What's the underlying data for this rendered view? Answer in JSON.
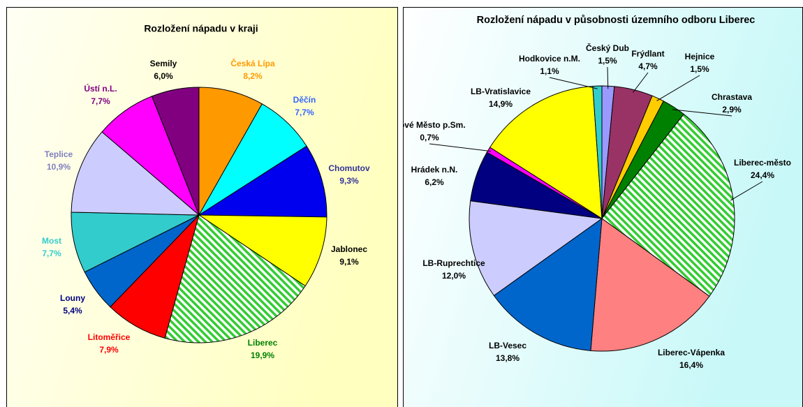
{
  "chart_data": [
    {
      "type": "pie",
      "title": "Rozložení nápadu v kraji",
      "categories": [
        "Česká Lípa",
        "Děčín",
        "Chomutov",
        "Jablonec",
        "Liberec",
        "Litoměřice",
        "Louny",
        "Most",
        "Teplice",
        "Ústí n.L.",
        "Semily"
      ],
      "values": [
        8.2,
        7.7,
        9.3,
        9.1,
        19.9,
        7.9,
        5.4,
        7.7,
        10.9,
        7.7,
        6.0
      ],
      "value_labels": [
        "8,2%",
        "7,7%",
        "9,3%",
        "9,1%",
        "19,9%",
        "7,9%",
        "5,4%",
        "7,7%",
        "10,9%",
        "7,7%",
        "6,0%"
      ],
      "colors": [
        "#ff9900",
        "#00ffff",
        "#0000ee",
        "#ffff00",
        "#33cc33",
        "#ff0000",
        "#0066cc",
        "#33cccc",
        "#ccccff",
        "#ff00ff",
        "#800080"
      ],
      "label_colors": [
        "#ff9900",
        "#3366ff",
        "#333399",
        "#000000",
        "#008000",
        "#ff0000",
        "#000080",
        "#33cccc",
        "#7f7fbf",
        "#800080",
        "#000000"
      ],
      "hatched": 4
    },
    {
      "type": "pie",
      "title": "Rozložení nápadu v působnosti územního odboru Liberec",
      "categories": [
        "Český Dub",
        "Frýdlant",
        "Hejnice",
        "Chrastava",
        "Liberec-město",
        "Liberec-Vápenka",
        "LB-Vesec",
        "LB-Ruprechtice",
        "Hrádek n.N.",
        "Nové Město p.Sm.",
        "LB-Vratislavice",
        "Hodkovice n.M."
      ],
      "values": [
        1.5,
        4.7,
        1.5,
        2.9,
        24.4,
        16.4,
        13.8,
        12.0,
        6.2,
        0.7,
        14.9,
        1.1
      ],
      "value_labels": [
        "1,5%",
        "4,7%",
        "1,5%",
        "2,9%",
        "24,4%",
        "16,4%",
        "13,8%",
        "12,0%",
        "6,2%",
        "0,7%",
        "14,9%",
        "1,1%"
      ],
      "colors": [
        "#9999ff",
        "#993366",
        "#ffcc00",
        "#008000",
        "#33cc33",
        "#ff8080",
        "#0066cc",
        "#ccccff",
        "#000080",
        "#ff00ff",
        "#ffff00",
        "#33cccc"
      ],
      "hatched": 4
    }
  ]
}
